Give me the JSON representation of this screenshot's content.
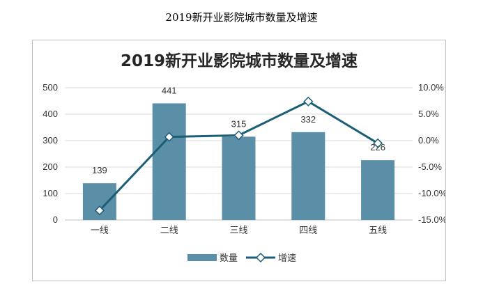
{
  "page_caption": "2019新开业影院城市数量及增速",
  "colors": {
    "bar": "#5b8fa7",
    "line": "#1b5e75",
    "grid": "#d9d9d9",
    "marker_fill": "#ffffff"
  },
  "chart_data": {
    "type": "bar+line",
    "title": "2019新开业影院城市数量及增速",
    "categories": [
      "一线",
      "二线",
      "三线",
      "四线",
      "五线"
    ],
    "series": [
      {
        "name": "数量",
        "type": "bar",
        "axis": "left",
        "values": [
          139,
          441,
          315,
          332,
          226
        ],
        "data_labels": [
          "139",
          "441",
          "315",
          "332",
          "226"
        ]
      },
      {
        "name": "增速",
        "type": "line",
        "axis": "right",
        "unit": "%",
        "values": [
          -13.2,
          0.7,
          1.0,
          7.4,
          -0.5
        ]
      }
    ],
    "y_left": {
      "min": 0,
      "max": 500,
      "ticks": [
        "0",
        "100",
        "200",
        "300",
        "400",
        "500"
      ]
    },
    "y_right": {
      "min": -15,
      "max": 10,
      "ticks": [
        "10.0%",
        "5.0%",
        "0.0%",
        "-5.0%",
        "-10.0%",
        "-15.0%"
      ]
    },
    "grid": true,
    "legend_position": "bottom"
  }
}
